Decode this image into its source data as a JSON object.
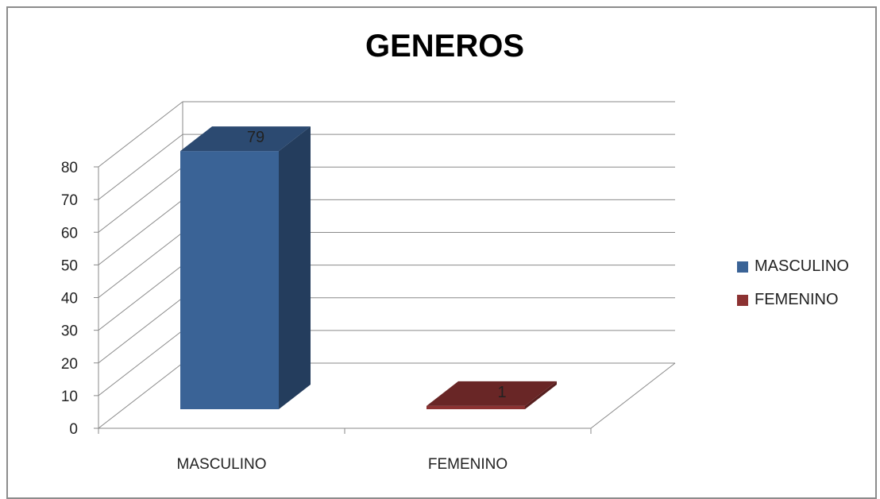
{
  "chart_data": {
    "type": "bar",
    "title": "GENEROS",
    "categories": [
      "MASCULINO",
      "FEMENINO"
    ],
    "series": [
      {
        "name": "MASCULINO",
        "values": [
          79,
          null
        ],
        "color": "#3a6396"
      },
      {
        "name": "FEMENINO",
        "values": [
          null,
          1
        ],
        "color": "#8c3232"
      }
    ],
    "data_labels": [
      "79",
      "1"
    ],
    "y_ticks": [
      "0",
      "10",
      "20",
      "30",
      "40",
      "50",
      "60",
      "70",
      "80"
    ],
    "ylim": [
      0,
      80
    ],
    "xlabel": "",
    "ylabel": "",
    "grid": true,
    "style": "3d-column",
    "legend_position": "right"
  }
}
